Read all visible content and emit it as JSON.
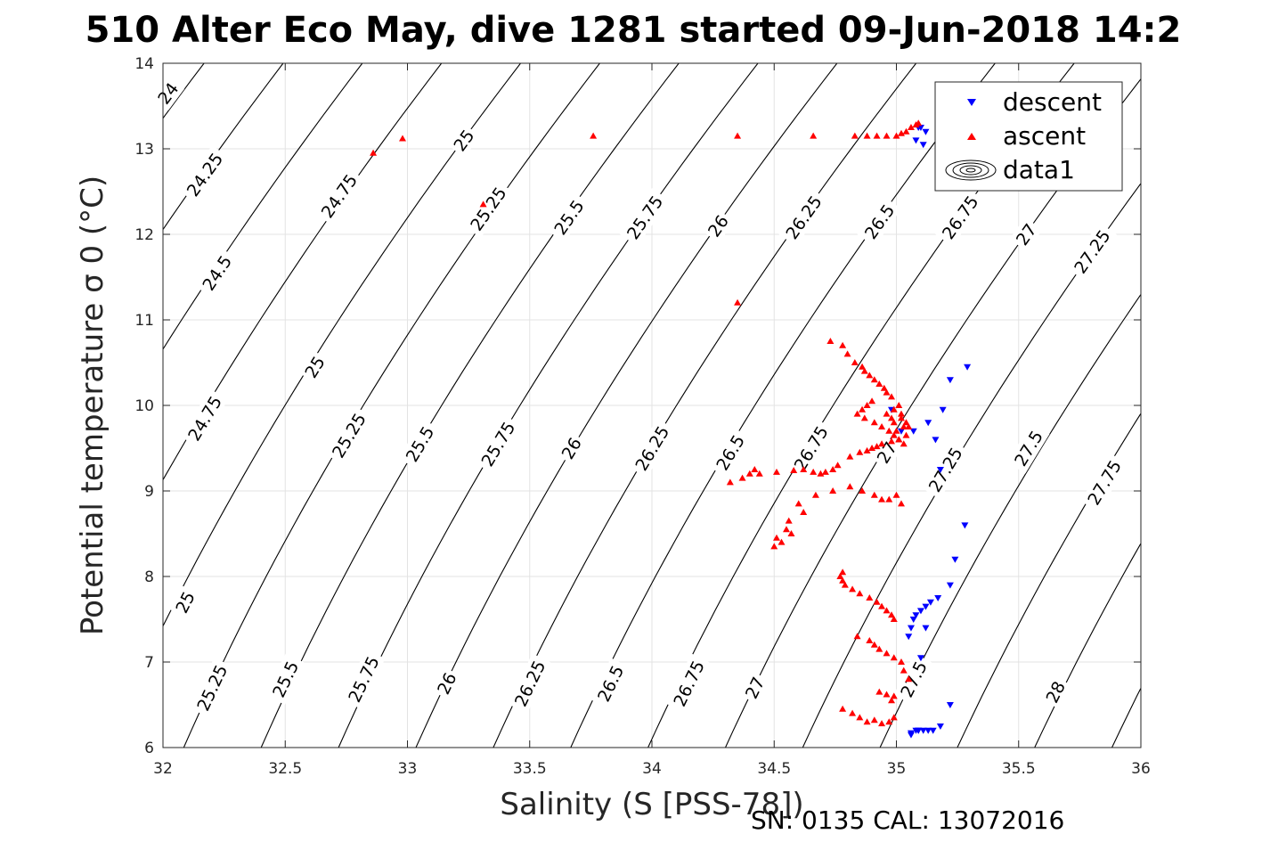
{
  "chart_data": {
    "type": "scatter",
    "title": "510 Alter Eco May, dive 1281 started 09-Jun-2018 14:2",
    "xlabel": "Salinity (S [PSS-78])",
    "ylabel": "Potential temperature σ 0 (°C)",
    "footer": "SN: 0135  CAL: 13072016",
    "xlim": [
      32,
      36
    ],
    "ylim": [
      6,
      14
    ],
    "xticks": [
      "32",
      "32.5",
      "33",
      "33.5",
      "34",
      "34.5",
      "35",
      "35.5",
      "36"
    ],
    "yticks": [
      "6",
      "7",
      "8",
      "9",
      "10",
      "11",
      "12",
      "13",
      "14"
    ],
    "grid": true,
    "legend_position": "top-right",
    "legend": [
      "descent",
      "ascent",
      "data1"
    ],
    "colors": {
      "descent": "#0000ff",
      "ascent": "#ff0000",
      "contour": "#000000",
      "grid": "#e3e3e3"
    },
    "contour_levels": [
      {
        "label": "24",
        "x": [
          32.02
        ],
        "y": [
          13.65
        ]
      },
      {
        "label": "24.25",
        "x": [
          32.17
        ],
        "y": [
          12.7
        ]
      },
      {
        "label": "24.5",
        "x": [
          32.22
        ],
        "y": [
          11.55
        ]
      },
      {
        "label": "24.75",
        "x": [
          32.17,
          32.72
        ],
        "y": [
          9.85,
          12.45
        ]
      },
      {
        "label": "25",
        "x": [
          32.09,
          32.62,
          33.23
        ],
        "y": [
          7.7,
          10.45,
          13.1
        ]
      },
      {
        "label": "25.25",
        "x": [
          32.2,
          32.76,
          33.33
        ],
        "y": [
          6.7,
          9.65,
          12.3
        ]
      },
      {
        "label": "25.5",
        "x": [
          32.5,
          33.05,
          33.66
        ],
        "y": [
          6.8,
          9.55,
          12.2
        ]
      },
      {
        "label": "25.75",
        "x": [
          32.82,
          33.37,
          33.97
        ],
        "y": [
          6.8,
          9.55,
          12.2
        ]
      },
      {
        "label": "26",
        "x": [
          33.16,
          33.67,
          34.27
        ],
        "y": [
          6.75,
          9.5,
          12.1
        ]
      },
      {
        "label": "26.25",
        "x": [
          33.5,
          34.0,
          34.62
        ],
        "y": [
          6.75,
          9.5,
          12.2
        ]
      },
      {
        "label": "26.5",
        "x": [
          33.83,
          34.32,
          34.93
        ],
        "y": [
          6.75,
          9.45,
          12.15
        ]
      },
      {
        "label": "26.75",
        "x": [
          34.15,
          34.65,
          35.26
        ],
        "y": [
          6.75,
          9.5,
          12.2
        ]
      },
      {
        "label": "27",
        "x": [
          34.42,
          34.96,
          35.53
        ],
        "y": [
          6.7,
          9.45,
          12.0
        ]
      },
      {
        "label": "27.25",
        "x": [
          35.2,
          35.8
        ],
        "y": [
          9.25,
          11.8
        ]
      },
      {
        "label": "27.5",
        "x": [
          35.07,
          35.54
        ],
        "y": [
          6.8,
          9.5
        ]
      },
      {
        "label": "27.75",
        "x": [
          35.85
        ],
        "y": [
          9.1
        ]
      },
      {
        "label": "28",
        "x": [
          35.65
        ],
        "y": [
          6.65
        ]
      }
    ],
    "series": [
      {
        "name": "descent",
        "marker": "triangle-down",
        "x": [
          35.09,
          35.12,
          35.08,
          35.11,
          35.1,
          34.98,
          35.02,
          35.07,
          35.13,
          35.16,
          35.19,
          35.22,
          35.29,
          35.18,
          35.1,
          35.12,
          35.05,
          35.06,
          35.07,
          35.08,
          35.1,
          35.12,
          35.14,
          35.17,
          35.22,
          35.24,
          35.28,
          35.09,
          35.06,
          35.08,
          35.09,
          35.11,
          35.13,
          35.15,
          35.22,
          35.18,
          35.06
        ],
        "y": [
          13.25,
          13.2,
          13.1,
          13.05,
          13.25,
          9.95,
          9.7,
          9.7,
          9.8,
          9.6,
          9.95,
          10.3,
          10.45,
          9.25,
          7.05,
          7.4,
          7.3,
          7.4,
          7.5,
          7.55,
          7.6,
          7.65,
          7.7,
          7.75,
          7.9,
          8.2,
          8.6,
          6.2,
          6.17,
          6.2,
          6.2,
          6.2,
          6.2,
          6.2,
          6.5,
          6.25,
          6.15
        ]
      },
      {
        "name": "ascent",
        "marker": "triangle-up",
        "x": [
          32.86,
          32.98,
          33.31,
          33.76,
          34.35,
          34.66,
          34.83,
          34.88,
          34.92,
          34.96,
          35.0,
          35.02,
          35.04,
          35.06,
          35.08,
          35.09,
          34.35,
          34.73,
          34.78,
          34.8,
          34.83,
          34.86,
          34.87,
          34.89,
          34.91,
          34.93,
          34.95,
          34.96,
          34.98,
          34.9,
          34.88,
          34.86,
          34.84,
          34.87,
          34.91,
          34.94,
          34.97,
          34.99,
          35.01,
          35.03,
          34.98,
          34.96,
          34.99,
          35.01,
          35.02,
          35.04,
          35.03,
          35.0,
          34.99,
          35.02,
          35.05,
          35.04,
          35.01,
          34.98,
          34.94,
          34.92,
          34.9,
          34.88,
          34.85,
          34.81,
          34.76,
          34.74,
          34.71,
          34.69,
          34.66,
          34.62,
          34.58,
          34.51,
          34.44,
          34.42,
          34.4,
          34.37,
          34.32,
          34.62,
          34.55,
          34.51,
          34.5,
          34.53,
          34.57,
          34.56,
          34.6,
          34.67,
          34.74,
          34.81,
          34.86,
          34.91,
          34.94,
          34.97,
          35.0,
          35.02,
          34.99,
          34.98,
          34.96,
          34.94,
          34.92,
          34.89,
          34.85,
          34.82,
          34.79,
          34.78,
          34.77,
          34.78,
          34.84,
          34.89,
          34.91,
          34.93,
          34.96,
          34.99,
          35.02,
          35.03,
          35.05,
          34.99,
          34.97,
          34.94,
          34.91,
          34.88,
          34.85,
          34.82,
          34.78,
          34.98,
          34.99,
          34.96,
          34.93
        ],
        "y": [
          12.95,
          13.12,
          12.35,
          13.15,
          13.15,
          13.15,
          13.15,
          13.15,
          13.15,
          13.15,
          13.15,
          13.18,
          13.2,
          13.25,
          13.28,
          13.3,
          11.2,
          10.75,
          10.7,
          10.6,
          10.5,
          10.45,
          10.4,
          10.35,
          10.3,
          10.25,
          10.2,
          10.15,
          10.1,
          10.05,
          10.0,
          9.95,
          9.9,
          9.85,
          9.8,
          9.75,
          9.7,
          9.65,
          9.6,
          9.55,
          9.85,
          9.9,
          9.95,
          10.0,
          9.9,
          9.8,
          9.75,
          9.7,
          9.8,
          9.85,
          9.75,
          9.65,
          9.6,
          9.58,
          9.55,
          9.52,
          9.5,
          9.47,
          9.45,
          9.4,
          9.3,
          9.25,
          9.22,
          9.2,
          9.22,
          9.25,
          9.24,
          9.22,
          9.2,
          9.25,
          9.2,
          9.15,
          9.1,
          8.75,
          8.55,
          8.45,
          8.35,
          8.4,
          8.5,
          8.65,
          8.85,
          8.95,
          9.0,
          9.05,
          9.0,
          8.95,
          8.9,
          8.9,
          8.95,
          8.85,
          7.5,
          7.55,
          7.6,
          7.65,
          7.7,
          7.75,
          7.8,
          7.85,
          7.9,
          7.95,
          8.0,
          8.05,
          7.3,
          7.25,
          7.2,
          7.15,
          7.1,
          7.05,
          7.0,
          6.9,
          6.8,
          6.35,
          6.3,
          6.28,
          6.32,
          6.3,
          6.35,
          6.4,
          6.45,
          6.55,
          6.6,
          6.62,
          6.65
        ]
      }
    ]
  }
}
